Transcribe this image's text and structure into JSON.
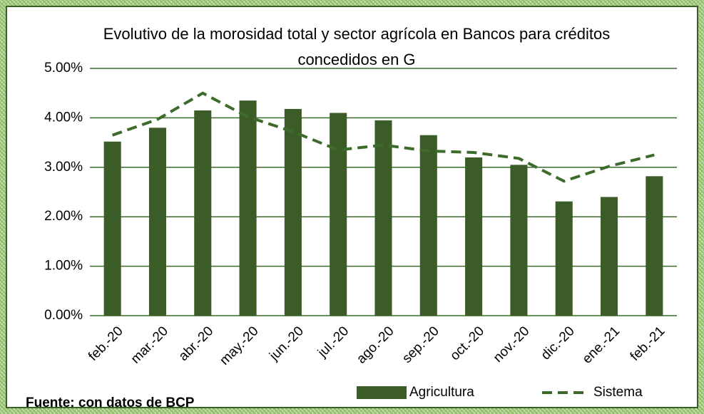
{
  "chart_data": {
    "type": "bar",
    "title": "Evolutivo de la morosidad total y sector agrícola en Bancos para créditos concedidos en G",
    "categories": [
      "feb.-20",
      "mar.-20",
      "abr.-20",
      "may.-20",
      "jun.-20",
      "jul.-20",
      "ago.-20",
      "sep.-20",
      "oct.-20",
      "nov.-20",
      "dic.-20",
      "ene.-21",
      "feb.-21"
    ],
    "series": [
      {
        "name": "Agricultura",
        "type": "bar",
        "color": "#3b5b27",
        "values": [
          3.52,
          3.8,
          4.15,
          4.35,
          4.18,
          4.1,
          3.95,
          3.65,
          3.2,
          3.05,
          2.31,
          2.4,
          2.82
        ]
      },
      {
        "name": "Sistema",
        "type": "line",
        "color": "#3d6b2c",
        "values": [
          3.65,
          3.97,
          4.5,
          4.02,
          3.72,
          3.35,
          3.45,
          3.33,
          3.3,
          3.18,
          2.72,
          3.02,
          3.25
        ]
      }
    ],
    "ylim": [
      0,
      5
    ],
    "yticks": [
      {
        "value": 0,
        "label": "0.00%"
      },
      {
        "value": 1,
        "label": "1.00%"
      },
      {
        "value": 2,
        "label": "2.00%"
      },
      {
        "value": 3,
        "label": "3.00%"
      },
      {
        "value": 4,
        "label": "4.00%"
      },
      {
        "value": 5,
        "label": "5.00%"
      }
    ],
    "grid": true,
    "legend": "bottom",
    "source": "Fuente: con datos de BCP"
  }
}
